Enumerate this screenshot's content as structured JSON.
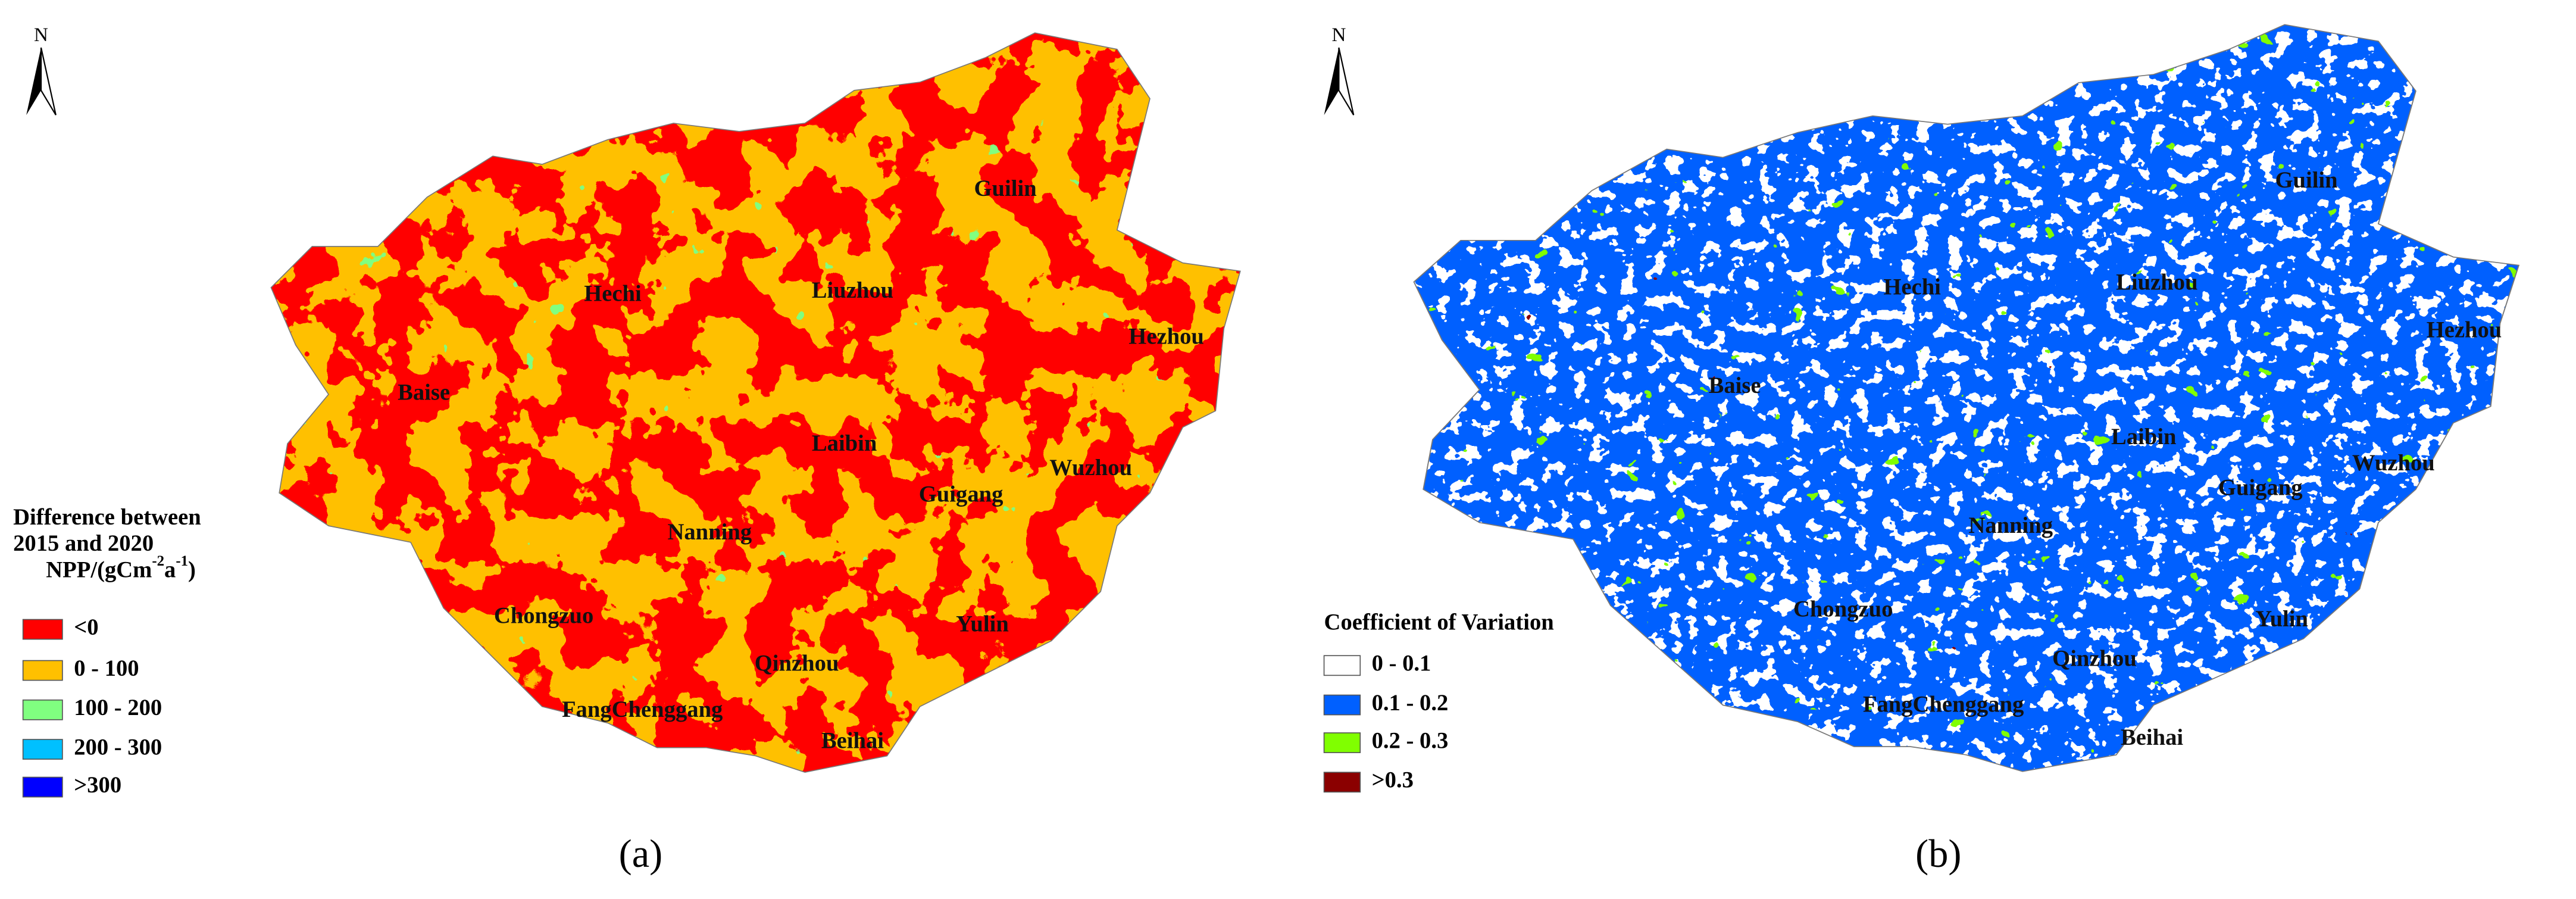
{
  "panels": [
    {
      "north": "N",
      "cities": [
        "Guilin",
        "Hechi",
        "Liuzhou",
        "Hezhou",
        "Baise",
        "Laibin",
        "Wuzhou",
        "Guigang",
        "Nanning",
        "Chongzuo",
        "Yulin",
        "Qinzhou",
        "FangChenggang",
        "Beihai"
      ],
      "legend": {
        "title": [
          "Difference between",
          "2015 and 2020"
        ],
        "unit": {
          "text": "NPP/(gCm",
          "exp1": "-2",
          "mid": "a",
          "exp2": "-1",
          "end": ")"
        },
        "items": [
          {
            "label": "<0",
            "color": "#ff0000"
          },
          {
            "label": "0 - 100",
            "color": "#ffc000"
          },
          {
            "label": "100 - 200",
            "color": "#80ff80"
          },
          {
            "label": "200 - 300",
            "color": "#00c0ff"
          },
          {
            "label": ">300",
            "color": "#0000ff"
          }
        ]
      },
      "caption": "(a)"
    },
    {
      "north": "N",
      "cities": [
        "Guilin",
        "Hechi",
        "Liuzhou",
        "Hezhou",
        "Baise",
        "Laibin",
        "Wuzhou",
        "Guigang",
        "Nanning",
        "Chongzuo",
        "Yulin",
        "Qinzhou",
        "FangChenggang",
        "Beihai"
      ],
      "legend": {
        "title": [
          "Coefficient of Variation"
        ],
        "items": [
          {
            "label": "0 - 0.1",
            "color": "#ffffff"
          },
          {
            "label": "0.1 - 0.2",
            "color": "#0060ff"
          },
          {
            "label": "0.2 - 0.3",
            "color": "#80ff00"
          },
          {
            "label": ">0.3",
            "color": "#8b0000"
          }
        ]
      },
      "caption": "(b)"
    }
  ]
}
